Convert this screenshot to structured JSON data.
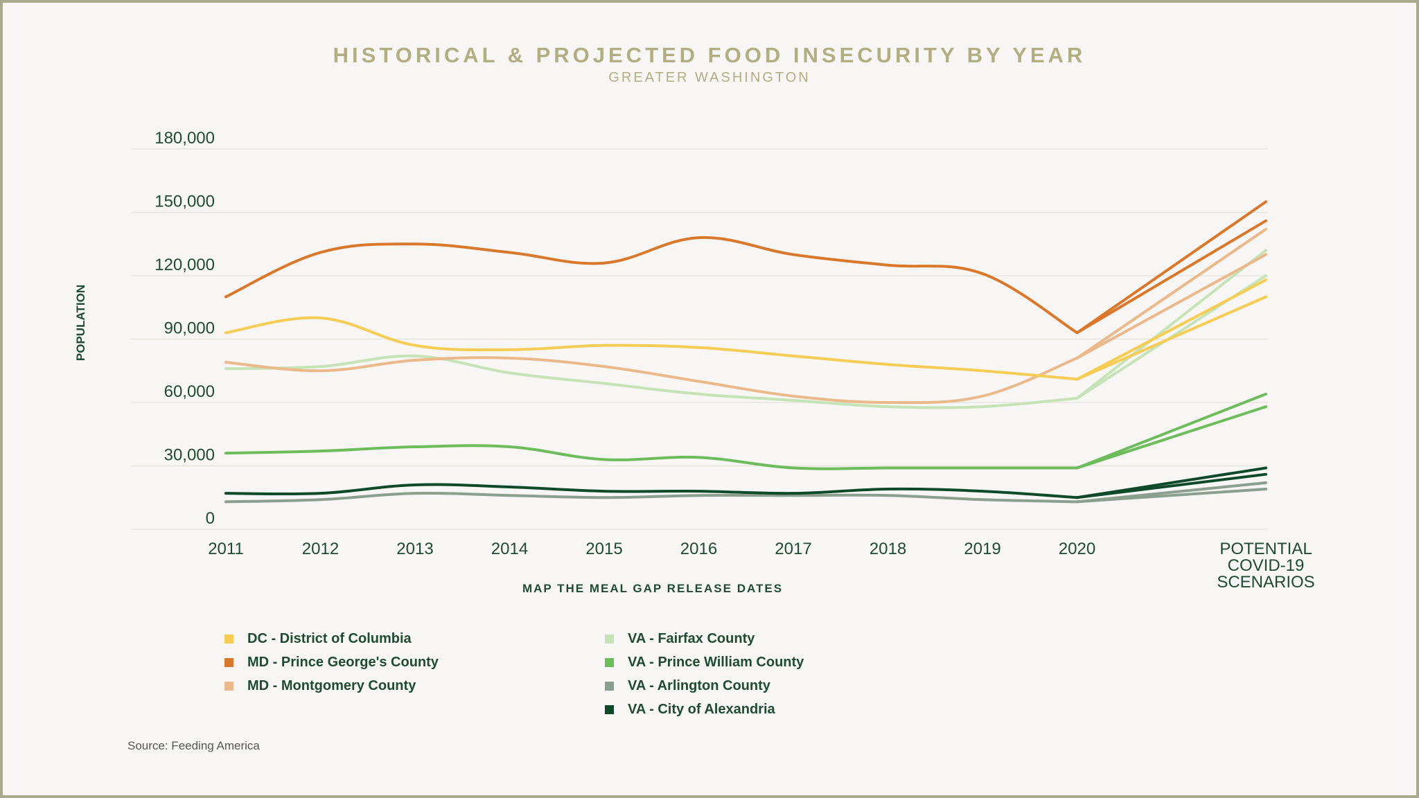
{
  "chart_data": {
    "type": "line",
    "title": "HISTORICAL & PROJECTED FOOD INSECURITY BY YEAR",
    "subtitle": "GREATER WASHINGTON",
    "ylabel": "POPULATION",
    "xlabel": "MAP THE MEAL GAP RELEASE DATES",
    "source": "Source: Feeding America",
    "ylim": [
      0,
      180000
    ],
    "yticks": [
      "0",
      "30,000",
      "60,000",
      "90,000",
      "120,000",
      "150,000",
      "180,000"
    ],
    "ytick_values": [
      0,
      30000,
      60000,
      90000,
      120000,
      150000,
      180000
    ],
    "categories": [
      "2011",
      "2012",
      "2013",
      "2014",
      "2015",
      "2016",
      "2017",
      "2018",
      "2019",
      "2020"
    ],
    "scenario_label": [
      "POTENTIAL",
      "COVID-19",
      "SCENARIOS"
    ],
    "series": [
      {
        "name": "DC - District of Columbia",
        "color": "#f6cc54",
        "values": [
          93000,
          100000,
          87000,
          85000,
          87000,
          86000,
          82000,
          78000,
          75000,
          71000
        ],
        "scenarios": [
          118000,
          110000
        ]
      },
      {
        "name": "MD - Prince George's County",
        "color": "#d9782a",
        "values": [
          110000,
          131000,
          135000,
          131000,
          126000,
          138000,
          130000,
          125000,
          121000,
          93000
        ],
        "scenarios": [
          155000,
          146000
        ]
      },
      {
        "name": "MD - Montgomery County",
        "color": "#ebb88a",
        "values": [
          79000,
          75000,
          80000,
          81000,
          77000,
          70000,
          63000,
          60000,
          63000,
          81000
        ],
        "scenarios": [
          142000,
          130000
        ]
      },
      {
        "name": "VA - Fairfax County",
        "color": "#c5e3b7",
        "values": [
          76000,
          77000,
          82000,
          74000,
          69000,
          64000,
          61000,
          58000,
          58000,
          62000
        ],
        "scenarios": [
          132000,
          120000
        ]
      },
      {
        "name": "VA - Prince William County",
        "color": "#6cbc5c",
        "values": [
          36000,
          37000,
          39000,
          39000,
          33000,
          34000,
          29000,
          29000,
          29000,
          29000
        ],
        "scenarios": [
          64000,
          58000
        ]
      },
      {
        "name": "VA - Arlington County",
        "color": "#8a9f8e",
        "values": [
          13000,
          14000,
          17000,
          16000,
          15000,
          16000,
          16000,
          16000,
          14000,
          13000
        ],
        "scenarios": [
          22000,
          19000
        ]
      },
      {
        "name": "VA - City of Alexandria",
        "color": "#0e4a2a",
        "values": [
          17000,
          17000,
          21000,
          20000,
          18000,
          18000,
          17000,
          19000,
          18000,
          15000
        ],
        "scenarios": [
          29000,
          26000
        ]
      }
    ]
  }
}
